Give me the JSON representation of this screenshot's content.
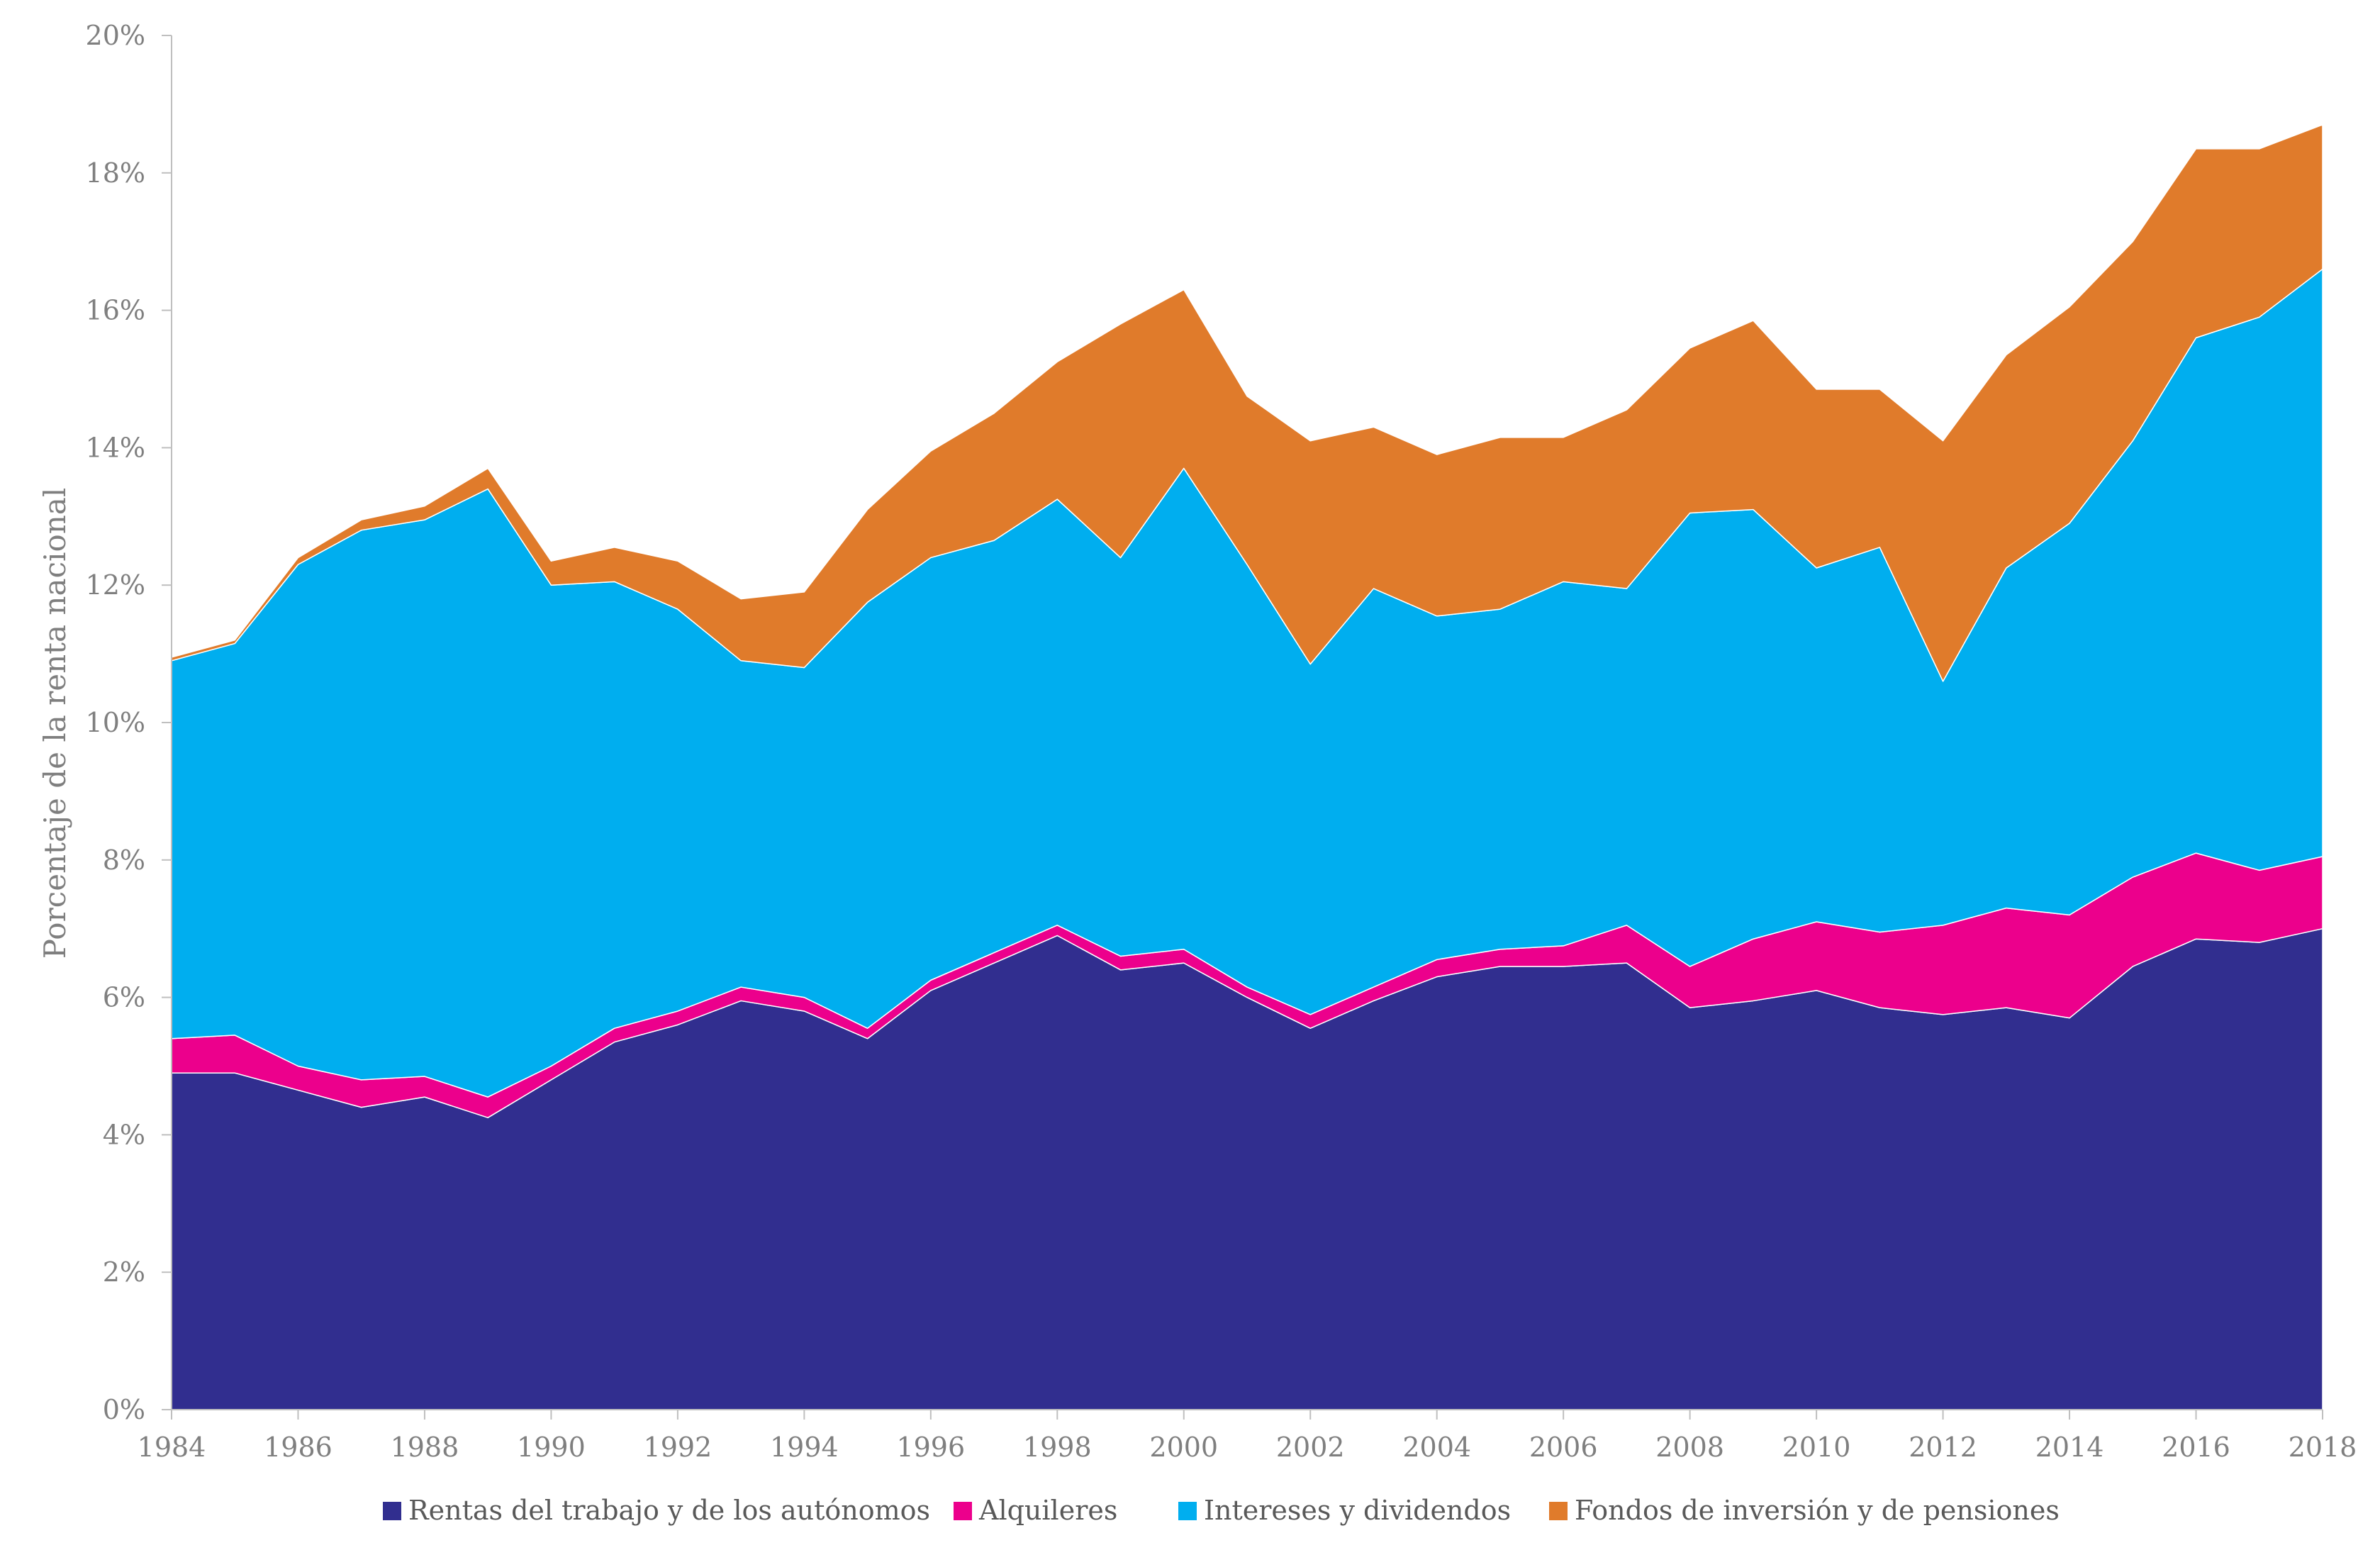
{
  "chart_data": {
    "type": "area",
    "stacked": true,
    "ylabel": "Porcentaje de la renta nacional",
    "xlabel": "",
    "title": "",
    "ylim": [
      0,
      20
    ],
    "xlim": [
      1984,
      2018
    ],
    "y_ticks": [
      "0%",
      "2%",
      "4%",
      "6%",
      "8%",
      "10%",
      "12%",
      "14%",
      "16%",
      "18%",
      "20%"
    ],
    "x_ticks": [
      "1984",
      "1986",
      "1988",
      "1990",
      "1992",
      "1994",
      "1996",
      "1998",
      "2000",
      "2002",
      "2004",
      "2006",
      "2008",
      "2010",
      "2012",
      "2014",
      "2016",
      "2018"
    ],
    "grid": false,
    "legend_position": "bottom",
    "x": [
      1984,
      1985,
      1986,
      1987,
      1988,
      1989,
      1990,
      1991,
      1992,
      1993,
      1994,
      1995,
      1996,
      1997,
      1998,
      1999,
      2000,
      2001,
      2002,
      2003,
      2004,
      2005,
      2006,
      2007,
      2008,
      2009,
      2010,
      2011,
      2012,
      2013,
      2014,
      2015,
      2016,
      2017,
      2018
    ],
    "series": [
      {
        "name": "Rentas del trabajo y de los autónomos",
        "color": "#312e8f",
        "values": [
          4.9,
          4.9,
          4.65,
          4.4,
          4.55,
          4.25,
          4.8,
          5.35,
          5.6,
          5.95,
          5.8,
          5.4,
          6.1,
          6.5,
          6.9,
          6.4,
          6.5,
          6.0,
          5.55,
          5.95,
          6.3,
          6.45,
          6.45,
          6.5,
          5.85,
          5.95,
          6.1,
          5.85,
          5.75,
          5.85,
          5.7,
          6.45,
          6.85,
          6.8,
          7.0
        ]
      },
      {
        "name": "Alquileres",
        "color": "#ec008c",
        "values": [
          0.5,
          0.55,
          0.35,
          0.4,
          0.3,
          0.3,
          0.2,
          0.2,
          0.2,
          0.2,
          0.2,
          0.15,
          0.15,
          0.15,
          0.15,
          0.2,
          0.2,
          0.15,
          0.2,
          0.2,
          0.25,
          0.25,
          0.3,
          0.55,
          0.6,
          0.9,
          1.0,
          1.1,
          1.3,
          1.45,
          1.5,
          1.3,
          1.25,
          1.05,
          1.05
        ]
      },
      {
        "name": "Intereses y dividendos",
        "color": "#00aeef",
        "values": [
          5.5,
          5.7,
          7.3,
          8.0,
          8.1,
          8.85,
          7.0,
          6.5,
          5.85,
          4.75,
          4.8,
          6.2,
          6.15,
          6.0,
          6.2,
          5.8,
          7.0,
          6.15,
          5.1,
          5.8,
          5.0,
          4.95,
          5.3,
          4.9,
          6.6,
          6.25,
          5.15,
          5.6,
          3.55,
          4.95,
          5.7,
          6.35,
          7.5,
          8.05,
          8.55
        ]
      },
      {
        "name": "Fondos de inversión y de pensiones",
        "color": "#e07b2b",
        "values": [
          0.05,
          0.05,
          0.1,
          0.15,
          0.2,
          0.3,
          0.35,
          0.5,
          0.7,
          0.9,
          1.1,
          1.35,
          1.55,
          1.85,
          2.0,
          3.4,
          2.6,
          2.45,
          3.25,
          2.35,
          2.35,
          2.5,
          2.1,
          2.6,
          2.4,
          2.75,
          2.6,
          2.3,
          3.5,
          3.1,
          3.15,
          2.9,
          2.75,
          2.45,
          2.1
        ]
      }
    ]
  }
}
